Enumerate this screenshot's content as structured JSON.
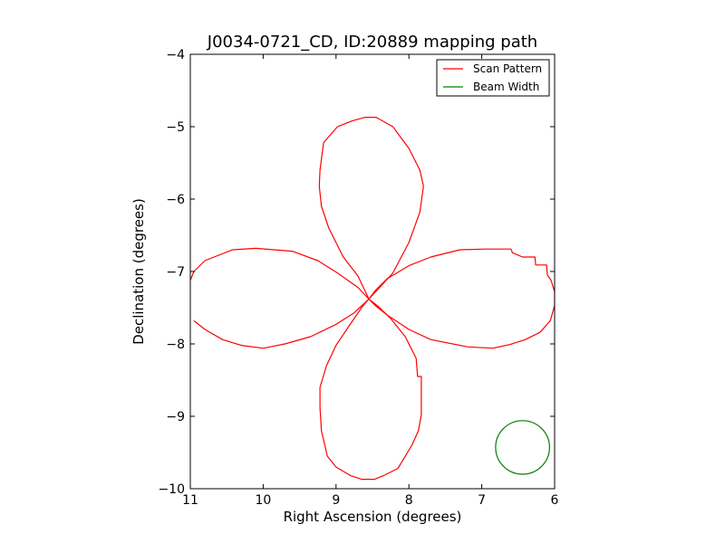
{
  "chart_data": {
    "type": "line",
    "title": "J0034-0721_CD, ID:20889 mapping path",
    "xlabel": "Right Ascension (degrees)",
    "ylabel": "Declination (degrees)",
    "xlim": [
      11,
      6
    ],
    "ylim": [
      -10,
      -4
    ],
    "x_inverted": true,
    "xticks": [
      11,
      10,
      9,
      8,
      7,
      6
    ],
    "xtick_labels": [
      "11",
      "10",
      "9",
      "8",
      "7",
      "6"
    ],
    "yticks": [
      -4,
      -5,
      -6,
      -7,
      -8,
      -9,
      -10
    ],
    "ytick_labels": [
      "−4",
      "−5",
      "−6",
      "−7",
      "−8",
      "−9",
      "−10"
    ],
    "grid": false,
    "legend_position": "top-right",
    "series": [
      {
        "name": "Scan Pattern",
        "color": "#ff0000",
        "points": [
          [
            8.55,
            -7.38
          ],
          [
            8.45,
            -7.25
          ],
          [
            8.3,
            -7.1
          ],
          [
            8.0,
            -6.92
          ],
          [
            7.7,
            -6.8
          ],
          [
            7.3,
            -6.7
          ],
          [
            6.95,
            -6.69
          ],
          [
            6.6,
            -6.69
          ],
          [
            6.58,
            -6.74
          ],
          [
            6.44,
            -6.8
          ],
          [
            6.27,
            -6.8
          ],
          [
            6.26,
            -6.91
          ],
          [
            6.11,
            -6.91
          ],
          [
            6.1,
            -7.05
          ],
          [
            6.05,
            -7.12
          ],
          [
            6.0,
            -7.28
          ],
          [
            6.0,
            -7.47
          ],
          [
            6.06,
            -7.68
          ],
          [
            6.2,
            -7.84
          ],
          [
            6.4,
            -7.94
          ],
          [
            6.62,
            -8.01
          ],
          [
            6.85,
            -8.06
          ],
          [
            7.2,
            -8.04
          ],
          [
            7.7,
            -7.94
          ],
          [
            8.0,
            -7.8
          ],
          [
            8.3,
            -7.6
          ],
          [
            8.45,
            -7.48
          ],
          [
            8.55,
            -7.38
          ],
          [
            8.7,
            -7.22
          ],
          [
            8.98,
            -7.02
          ],
          [
            9.25,
            -6.85
          ],
          [
            9.6,
            -6.72
          ],
          [
            10.1,
            -6.68
          ],
          [
            10.42,
            -6.7
          ],
          [
            10.8,
            -6.85
          ],
          [
            10.95,
            -7.0
          ],
          [
            11.0,
            -7.12
          ],
          [
            11.02,
            -7.37
          ]
        ]
      },
      {
        "name": "",
        "color": "#ff0000",
        "points": [
          [
            10.95,
            -7.68
          ],
          [
            10.8,
            -7.8
          ],
          [
            10.56,
            -7.94
          ],
          [
            10.3,
            -8.02
          ],
          [
            10.0,
            -8.06
          ],
          [
            9.7,
            -8.0
          ],
          [
            9.35,
            -7.9
          ],
          [
            9.0,
            -7.73
          ],
          [
            8.75,
            -7.57
          ],
          [
            8.55,
            -7.38
          ],
          [
            8.4,
            -7.22
          ],
          [
            8.22,
            -7.02
          ],
          [
            8.0,
            -6.6
          ],
          [
            7.85,
            -6.18
          ],
          [
            7.8,
            -5.82
          ],
          [
            7.85,
            -5.6
          ],
          [
            8.0,
            -5.3
          ],
          [
            8.22,
            -5.0
          ],
          [
            8.45,
            -4.87
          ],
          [
            8.6,
            -4.87
          ],
          [
            8.78,
            -4.92
          ],
          [
            8.98,
            -5.0
          ],
          [
            9.17,
            -5.22
          ],
          [
            9.22,
            -5.6
          ],
          [
            9.23,
            -5.82
          ],
          [
            9.2,
            -6.1
          ],
          [
            9.1,
            -6.4
          ],
          [
            8.9,
            -6.8
          ],
          [
            8.7,
            -7.06
          ],
          [
            8.55,
            -7.38
          ],
          [
            8.4,
            -7.5
          ],
          [
            8.25,
            -7.65
          ],
          [
            8.05,
            -7.9
          ],
          [
            7.9,
            -8.2
          ],
          [
            7.88,
            -8.45
          ],
          [
            7.83,
            -8.45
          ],
          [
            7.83,
            -8.98
          ],
          [
            7.87,
            -9.2
          ],
          [
            7.96,
            -9.4
          ],
          [
            8.15,
            -9.72
          ],
          [
            8.35,
            -9.82
          ],
          [
            8.47,
            -9.87
          ],
          [
            8.65,
            -9.87
          ],
          [
            8.8,
            -9.82
          ],
          [
            9.0,
            -9.7
          ],
          [
            9.12,
            -9.55
          ],
          [
            9.2,
            -9.2
          ],
          [
            9.22,
            -8.88
          ],
          [
            9.22,
            -8.6
          ],
          [
            9.13,
            -8.3
          ],
          [
            9.0,
            -8.02
          ],
          [
            8.82,
            -7.75
          ],
          [
            8.65,
            -7.5
          ],
          [
            8.55,
            -7.38
          ]
        ]
      },
      {
        "name": "Beam Width",
        "color": "#008000",
        "circle": {
          "cx": 6.44,
          "cy": -9.43,
          "r": 0.37
        }
      }
    ]
  }
}
